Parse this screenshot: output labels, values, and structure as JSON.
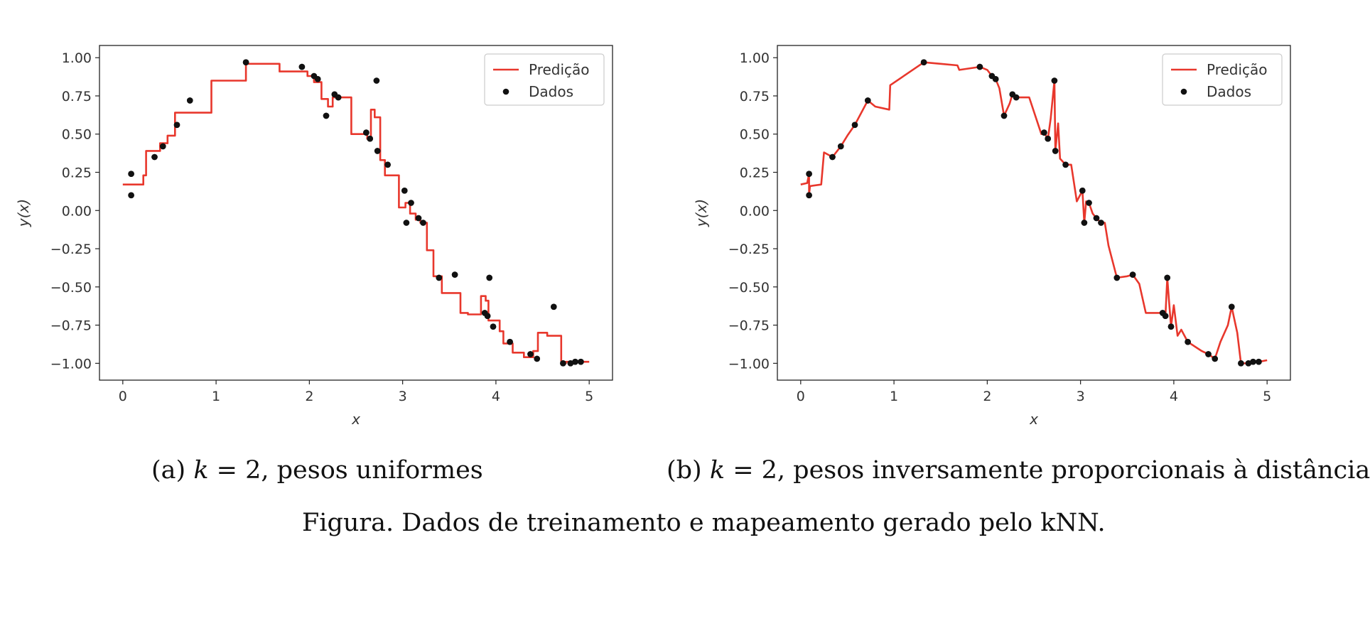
{
  "colors": {
    "prediction": "#e8372c",
    "data": "#111111",
    "axis": "#222222"
  },
  "captions": {
    "a": {
      "prefix": "(a) ",
      "k": "k",
      "eq": " = 2, pesos uniformes"
    },
    "b": {
      "prefix": "(b) ",
      "k": "k",
      "eq": " = 2, pesos inversamente proporcionais à distância"
    },
    "figure": "Figura. Dados de treinamento e mapeamento gerado pelo kNN."
  },
  "chart_data": [
    {
      "type": "line",
      "panel": "a",
      "xlabel": "x",
      "ylabel": "y(x)",
      "xlim": [
        -0.25,
        5.25
      ],
      "ylim": [
        -1.11,
        1.08
      ],
      "xticks": [
        0,
        1,
        2,
        3,
        4,
        5
      ],
      "yticks": [
        1.0,
        0.75,
        0.5,
        0.25,
        0.0,
        -0.25,
        -0.5,
        -0.75,
        -1.0
      ],
      "ytick_labels": [
        "1.00",
        "0.75",
        "0.50",
        "0.25",
        "0.00",
        "−0.25",
        "−0.50",
        "−0.75",
        "−1.00"
      ],
      "legend": {
        "position": "top-right",
        "entries": [
          "Predição",
          "Dados"
        ]
      },
      "grid": false,
      "series": [
        {
          "name": "Predição",
          "kind": "step-line",
          "x": [
            0.0,
            0.22,
            0.22,
            0.25,
            0.25,
            0.4,
            0.4,
            0.48,
            0.48,
            0.56,
            0.56,
            0.95,
            0.95,
            1.32,
            1.32,
            1.68,
            1.68,
            1.98,
            1.98,
            2.05,
            2.05,
            2.13,
            2.13,
            2.2,
            2.2,
            2.25,
            2.25,
            2.45,
            2.45,
            2.62,
            2.62,
            2.66,
            2.66,
            2.7,
            2.7,
            2.76,
            2.76,
            2.81,
            2.81,
            2.96,
            2.96,
            3.03,
            3.03,
            3.08,
            3.08,
            3.14,
            3.14,
            3.19,
            3.19,
            3.26,
            3.26,
            3.33,
            3.33,
            3.42,
            3.42,
            3.62,
            3.62,
            3.7,
            3.7,
            3.84,
            3.84,
            3.89,
            3.89,
            3.92,
            3.92,
            4.04,
            4.04,
            4.08,
            4.08,
            4.18,
            4.18,
            4.3,
            4.3,
            4.4,
            4.4,
            4.45,
            4.45,
            4.55,
            4.55,
            4.7,
            4.7,
            4.75,
            4.75,
            5.0
          ],
          "y": [
            0.17,
            0.17,
            0.23,
            0.23,
            0.39,
            0.39,
            0.44,
            0.44,
            0.49,
            0.49,
            0.64,
            0.64,
            0.85,
            0.85,
            0.96,
            0.96,
            0.91,
            0.91,
            0.88,
            0.88,
            0.84,
            0.84,
            0.73,
            0.73,
            0.68,
            0.68,
            0.74,
            0.74,
            0.5,
            0.5,
            0.47,
            0.47,
            0.66,
            0.66,
            0.61,
            0.61,
            0.33,
            0.33,
            0.23,
            0.23,
            0.02,
            0.02,
            0.05,
            0.05,
            -0.02,
            -0.02,
            -0.06,
            -0.06,
            -0.08,
            -0.08,
            -0.26,
            -0.26,
            -0.43,
            -0.43,
            -0.54,
            -0.54,
            -0.67,
            -0.67,
            -0.68,
            -0.68,
            -0.56,
            -0.56,
            -0.59,
            -0.59,
            -0.72,
            -0.72,
            -0.79,
            -0.79,
            -0.87,
            -0.87,
            -0.93,
            -0.93,
            -0.96,
            -0.96,
            -0.92,
            -0.92,
            -0.8,
            -0.8,
            -0.82,
            -0.82,
            -1.0,
            -1.0,
            -0.99,
            -0.99
          ]
        },
        {
          "name": "Dados",
          "kind": "scatter",
          "x": [
            0.09,
            0.09,
            0.34,
            0.43,
            0.58,
            0.72,
            1.32,
            1.92,
            2.05,
            2.09,
            2.18,
            2.27,
            2.31,
            2.61,
            2.65,
            2.72,
            2.73,
            2.84,
            3.02,
            3.04,
            3.09,
            3.17,
            3.22,
            3.39,
            3.56,
            3.88,
            3.91,
            3.93,
            3.97,
            4.15,
            4.37,
            4.44,
            4.62,
            4.72,
            4.8,
            4.85,
            4.91
          ],
          "y": [
            0.24,
            0.1,
            0.35,
            0.42,
            0.56,
            0.72,
            0.97,
            0.94,
            0.88,
            0.86,
            0.62,
            0.76,
            0.74,
            0.51,
            0.47,
            0.85,
            0.39,
            0.3,
            0.13,
            -0.08,
            0.05,
            -0.05,
            -0.08,
            -0.44,
            -0.42,
            -0.67,
            -0.69,
            -0.44,
            -0.76,
            -0.86,
            -0.94,
            -0.97,
            -0.63,
            -1.0,
            -1.0,
            -0.99,
            -0.99
          ]
        }
      ]
    },
    {
      "type": "line",
      "panel": "b",
      "xlabel": "x",
      "ylabel": "y(x)",
      "xlim": [
        -0.25,
        5.25
      ],
      "ylim": [
        -1.11,
        1.08
      ],
      "xticks": [
        0,
        1,
        2,
        3,
        4,
        5
      ],
      "yticks": [
        1.0,
        0.75,
        0.5,
        0.25,
        0.0,
        -0.25,
        -0.5,
        -0.75,
        -1.0
      ],
      "ytick_labels": [
        "1.00",
        "0.75",
        "0.50",
        "0.25",
        "0.00",
        "−0.25",
        "−0.50",
        "−0.75",
        "−1.00"
      ],
      "legend": {
        "position": "top-right",
        "entries": [
          "Predição",
          "Dados"
        ]
      },
      "grid": false,
      "series": [
        {
          "name": "Predição",
          "kind": "line",
          "x": [
            0.0,
            0.07,
            0.09,
            0.09,
            0.1,
            0.22,
            0.25,
            0.34,
            0.43,
            0.5,
            0.58,
            0.72,
            0.8,
            0.95,
            0.96,
            1.32,
            1.5,
            1.68,
            1.7,
            1.92,
            2.0,
            2.05,
            2.09,
            2.13,
            2.18,
            2.24,
            2.27,
            2.31,
            2.45,
            2.58,
            2.61,
            2.65,
            2.68,
            2.72,
            2.73,
            2.74,
            2.76,
            2.78,
            2.84,
            2.9,
            2.96,
            3.02,
            3.04,
            3.06,
            3.09,
            3.13,
            3.17,
            3.22,
            3.26,
            3.3,
            3.39,
            3.5,
            3.56,
            3.63,
            3.7,
            3.8,
            3.88,
            3.91,
            3.93,
            3.95,
            3.97,
            4.0,
            4.04,
            4.08,
            4.15,
            4.3,
            4.37,
            4.44,
            4.5,
            4.58,
            4.62,
            4.68,
            4.72,
            4.8,
            4.85,
            4.91,
            5.0
          ],
          "y": [
            0.17,
            0.18,
            0.24,
            0.1,
            0.16,
            0.17,
            0.38,
            0.35,
            0.42,
            0.49,
            0.56,
            0.72,
            0.68,
            0.66,
            0.82,
            0.97,
            0.96,
            0.95,
            0.92,
            0.94,
            0.92,
            0.88,
            0.86,
            0.8,
            0.62,
            0.7,
            0.76,
            0.74,
            0.74,
            0.5,
            0.51,
            0.47,
            0.6,
            0.85,
            0.39,
            0.45,
            0.57,
            0.34,
            0.3,
            0.3,
            0.06,
            0.13,
            -0.08,
            0.06,
            0.05,
            -0.02,
            -0.05,
            -0.08,
            -0.08,
            -0.23,
            -0.44,
            -0.43,
            -0.42,
            -0.48,
            -0.67,
            -0.67,
            -0.67,
            -0.69,
            -0.44,
            -0.6,
            -0.76,
            -0.62,
            -0.82,
            -0.78,
            -0.86,
            -0.92,
            -0.94,
            -0.97,
            -0.86,
            -0.75,
            -0.63,
            -0.8,
            -1.0,
            -1.0,
            -0.99,
            -0.99,
            -0.98
          ]
        },
        {
          "name": "Dados",
          "kind": "scatter",
          "x": [
            0.09,
            0.09,
            0.34,
            0.43,
            0.58,
            0.72,
            1.32,
            1.92,
            2.05,
            2.09,
            2.18,
            2.27,
            2.31,
            2.61,
            2.65,
            2.72,
            2.73,
            2.84,
            3.02,
            3.04,
            3.09,
            3.17,
            3.22,
            3.39,
            3.56,
            3.88,
            3.91,
            3.93,
            3.97,
            4.15,
            4.37,
            4.44,
            4.62,
            4.72,
            4.8,
            4.85,
            4.91
          ],
          "y": [
            0.24,
            0.1,
            0.35,
            0.42,
            0.56,
            0.72,
            0.97,
            0.94,
            0.88,
            0.86,
            0.62,
            0.76,
            0.74,
            0.51,
            0.47,
            0.85,
            0.39,
            0.3,
            0.13,
            -0.08,
            0.05,
            -0.05,
            -0.08,
            -0.44,
            -0.42,
            -0.67,
            -0.69,
            -0.44,
            -0.76,
            -0.86,
            -0.94,
            -0.97,
            -0.63,
            -1.0,
            -1.0,
            -0.99,
            -0.99
          ]
        }
      ]
    }
  ]
}
